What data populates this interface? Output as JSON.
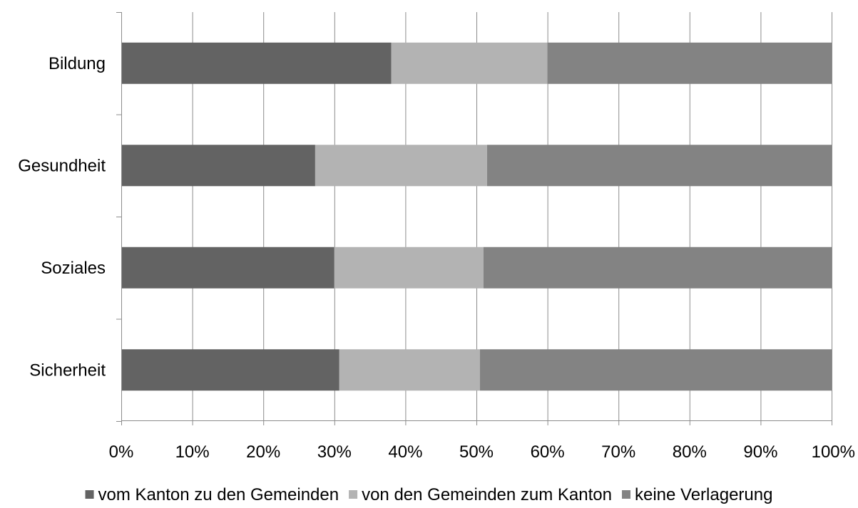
{
  "chart_data": {
    "type": "bar",
    "orientation": "horizontal",
    "stacked": "percent",
    "categories": [
      "Bildung",
      "Gesundheit",
      "Soziales",
      "Sicherheit"
    ],
    "series": [
      {
        "name": "vom Kanton zu den Gemeinden",
        "values": [
          38,
          27.3,
          30,
          30.7
        ],
        "color": "#636363"
      },
      {
        "name": "von den Gemeinden zum Kanton",
        "values": [
          22,
          24.2,
          21,
          19.8
        ],
        "color": "#b3b3b3"
      },
      {
        "name": "keine Verlagerung",
        "values": [
          40,
          48.5,
          49,
          49.5
        ],
        "color": "#838383"
      }
    ],
    "xlim": [
      0,
      100
    ],
    "x_ticks": [
      "0%",
      "10%",
      "20%",
      "30%",
      "40%",
      "50%",
      "60%",
      "70%",
      "80%",
      "90%",
      "100%"
    ],
    "grid": "vertical",
    "legend_position": "bottom",
    "title": "",
    "xlabel": "",
    "ylabel": ""
  }
}
